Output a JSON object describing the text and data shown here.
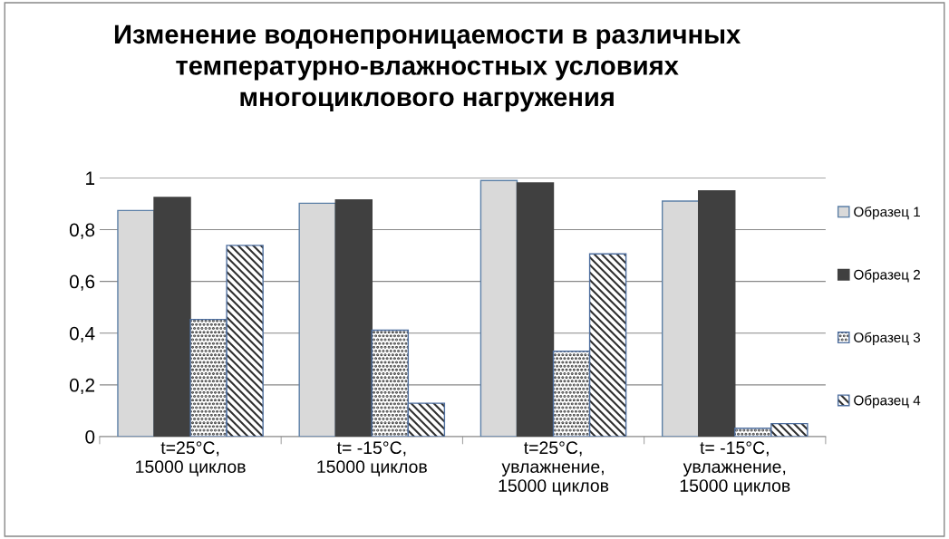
{
  "chart_data": {
    "type": "bar",
    "title": "Изменение водонепроницаемости в различных\nтемпературно-влажностных условиях\nмногоциклового нагружения",
    "categories": [
      "t=25°C,\n15000 циклов",
      "t= -15°C,\n15000 циклов",
      "t=25°C,\nувлажнение,\n15000 циклов",
      "t= -15°C,\nувлажнение,\n15000 циклов"
    ],
    "series": [
      {
        "name": "Образец 1",
        "color": "#d9d9d9",
        "values": [
          0.874,
          0.902,
          0.99,
          0.91
        ]
      },
      {
        "name": "Образец 2",
        "color": "#404040",
        "values": [
          0.924,
          0.915,
          0.98,
          0.95
        ]
      },
      {
        "name": "Образец 3",
        "color": "#4f6f9f",
        "values": [
          0.453,
          0.411,
          0.33,
          0.032
        ]
      },
      {
        "name": "Образец 4",
        "color": "#4f6f9f",
        "values": [
          0.739,
          0.129,
          0.706,
          0.05
        ]
      }
    ],
    "ylim": [
      0,
      1
    ],
    "yticks": [
      {
        "value": 0,
        "label": "0"
      },
      {
        "value": 0.2,
        "label": "0,2"
      },
      {
        "value": 0.4,
        "label": "0,4"
      },
      {
        "value": 0.6,
        "label": "0,6"
      },
      {
        "value": 0.8,
        "label": "0,8"
      },
      {
        "value": 1,
        "label": "1"
      }
    ],
    "grid": "y",
    "legend": "right"
  }
}
